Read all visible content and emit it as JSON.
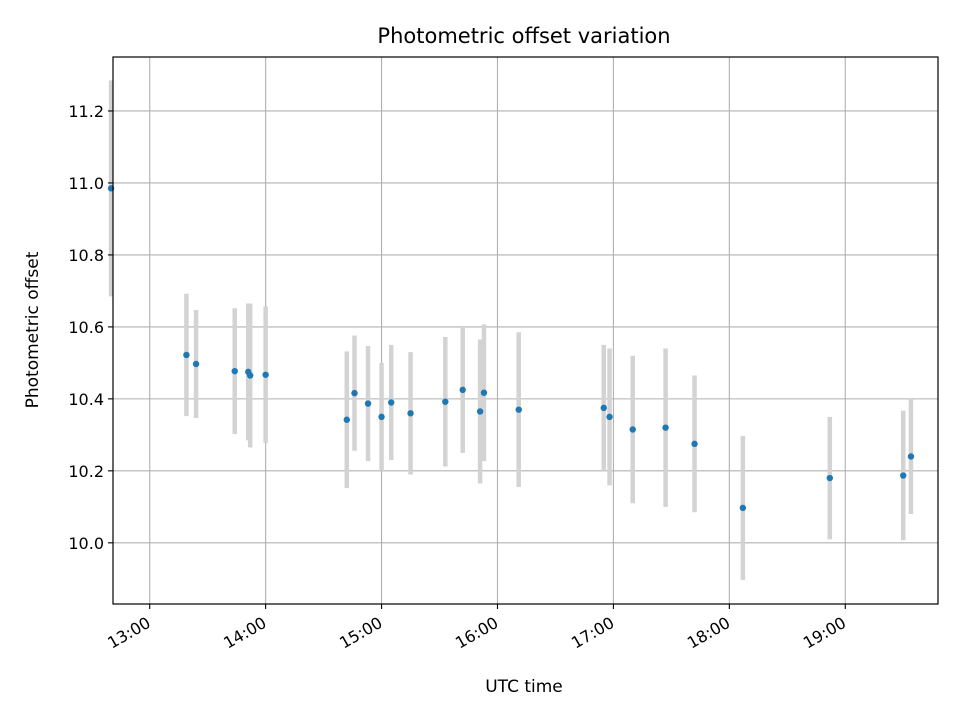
{
  "chart_data": {
    "type": "scatter",
    "title": "Photometric offset variation",
    "xlabel": "UTC time",
    "ylabel": "Photometric offset",
    "x_ticks": [
      "13:00",
      "14:00",
      "15:00",
      "16:00",
      "17:00",
      "18:00",
      "19:00"
    ],
    "y_ticks": [
      "10.0",
      "10.2",
      "10.4",
      "10.6",
      "10.8",
      "11.0",
      "11.2"
    ],
    "xlim": [
      "12:41",
      "19:48"
    ],
    "ylim": [
      9.83,
      11.35
    ],
    "grid": true,
    "legend": "none",
    "colors": {
      "marker": "#1f77b4",
      "errorbar": "#d3d3d3",
      "grid": "#b0b0b0",
      "axes": "#000000"
    },
    "series": [
      {
        "points": [
          {
            "x": "12:40",
            "y": 10.985,
            "yerr": 0.3
          },
          {
            "x": "13:19",
            "y": 10.522,
            "yerr": 0.17
          },
          {
            "x": "13:24",
            "y": 10.497,
            "yerr": 0.15
          },
          {
            "x": "13:44",
            "y": 10.477,
            "yerr": 0.175
          },
          {
            "x": "13:51",
            "y": 10.475,
            "yerr": 0.19
          },
          {
            "x": "13:52",
            "y": 10.465,
            "yerr": 0.2
          },
          {
            "x": "14:00",
            "y": 10.467,
            "yerr": 0.19
          },
          {
            "x": "14:42",
            "y": 10.342,
            "yerr": 0.19
          },
          {
            "x": "14:46",
            "y": 10.416,
            "yerr": 0.16
          },
          {
            "x": "14:53",
            "y": 10.387,
            "yerr": 0.16
          },
          {
            "x": "15:00",
            "y": 10.35,
            "yerr": 0.15
          },
          {
            "x": "15:05",
            "y": 10.39,
            "yerr": 0.16
          },
          {
            "x": "15:15",
            "y": 10.36,
            "yerr": 0.17
          },
          {
            "x": "15:33",
            "y": 10.392,
            "yerr": 0.18
          },
          {
            "x": "15:42",
            "y": 10.425,
            "yerr": 0.175
          },
          {
            "x": "15:51",
            "y": 10.365,
            "yerr": 0.2
          },
          {
            "x": "15:53",
            "y": 10.417,
            "yerr": 0.19
          },
          {
            "x": "16:11",
            "y": 10.37,
            "yerr": 0.215
          },
          {
            "x": "16:55",
            "y": 10.375,
            "yerr": 0.175
          },
          {
            "x": "16:58",
            "y": 10.35,
            "yerr": 0.19
          },
          {
            "x": "17:10",
            "y": 10.315,
            "yerr": 0.205
          },
          {
            "x": "17:27",
            "y": 10.32,
            "yerr": 0.22
          },
          {
            "x": "17:42",
            "y": 10.275,
            "yerr": 0.19
          },
          {
            "x": "18:07",
            "y": 10.097,
            "yerr": 0.2
          },
          {
            "x": "18:52",
            "y": 10.18,
            "yerr": 0.17
          },
          {
            "x": "19:30",
            "y": 10.187,
            "yerr": 0.18
          },
          {
            "x": "19:34",
            "y": 10.24,
            "yerr": 0.16
          }
        ]
      }
    ]
  }
}
